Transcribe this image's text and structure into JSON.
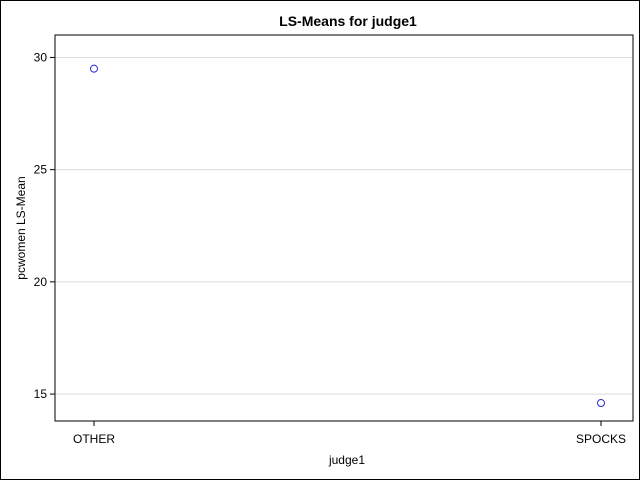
{
  "chart_data": {
    "type": "scatter",
    "title": "LS-Means for judge1",
    "xlabel": "judge1",
    "ylabel": "pcwomen LS-Mean",
    "categories": [
      "OTHER",
      "SPOCKS"
    ],
    "series": [
      {
        "values": [
          29.5,
          14.6
        ]
      }
    ],
    "ylim": [
      13.8,
      31.0
    ],
    "yticks": [
      15,
      20,
      25,
      30
    ],
    "grid": true,
    "marker": "circle",
    "colors": {
      "marker": "#2a28c8",
      "grid": "#dcdcdc",
      "axis": "#000000"
    }
  }
}
